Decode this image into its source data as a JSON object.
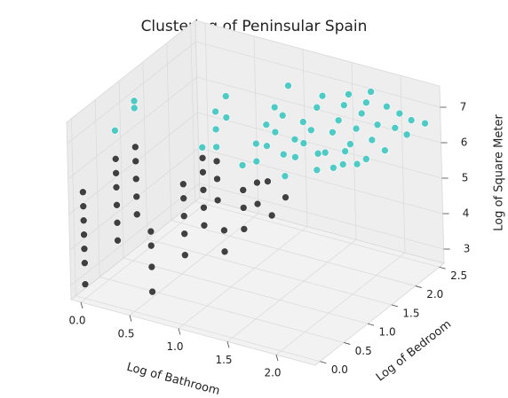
{
  "chart_data": {
    "type": "scatter3d",
    "title": "Clustering of Peninsular Spain",
    "x_label": "Log of Bathroom",
    "y_label": "Log of Bedroom",
    "z_label": "Log of Square Meter",
    "xlim": [
      -0.1,
      2.4
    ],
    "ylim": [
      -0.1,
      2.6
    ],
    "zlim": [
      2.6,
      7.6
    ],
    "xticks": [
      {
        "value": 0,
        "label": "0.0"
      },
      {
        "value": 0.5,
        "label": "0.5"
      },
      {
        "value": 1,
        "label": "1.0"
      },
      {
        "value": 1.5,
        "label": "1.5"
      },
      {
        "value": 2,
        "label": "2.0"
      }
    ],
    "yticks": [
      {
        "value": 0,
        "label": "0.0"
      },
      {
        "value": 0.5,
        "label": "0.5"
      },
      {
        "value": 1,
        "label": "1.0"
      },
      {
        "value": 1.5,
        "label": "1.5"
      },
      {
        "value": 2,
        "label": "2.0"
      },
      {
        "value": 2.5,
        "label": "2.5"
      }
    ],
    "zticks": [
      3,
      4,
      5,
      6,
      7
    ],
    "grid": true,
    "series": [
      {
        "color": "#222222",
        "x": [
          0,
          0,
          0,
          0,
          0,
          0,
          0,
          0,
          0,
          0,
          0,
          0,
          0,
          0,
          0,
          0,
          0,
          0,
          0.69,
          0.69,
          0.69,
          0.69,
          0.69,
          0.69,
          0.69,
          0.69,
          0.69,
          0.69,
          0.69,
          0.69,
          0.69,
          0.69,
          0.69,
          0.69,
          0.69,
          1.1,
          1.1,
          1.1,
          1.1,
          1.1,
          1.1,
          1.1,
          1.1,
          1.39,
          1.39
        ],
        "y": [
          0,
          0,
          0,
          0,
          0,
          0,
          0,
          0.69,
          0.69,
          0.69,
          0.69,
          0.69,
          0.69,
          1.1,
          1.1,
          1.1,
          1.1,
          1.1,
          0,
          0,
          0,
          0,
          0.69,
          0.69,
          0.69,
          0.69,
          0.69,
          1.1,
          1.1,
          1.1,
          1.1,
          1.1,
          1.39,
          1.39,
          1.39,
          0.69,
          0.69,
          1.1,
          1.1,
          1.1,
          1.39,
          1.39,
          1.61,
          1.1,
          1.39
        ],
        "z": [
          3.0,
          3.6,
          4.0,
          4.4,
          4.8,
          5.2,
          5.6,
          3.5,
          4.0,
          4.5,
          5.0,
          5.4,
          5.8,
          3.8,
          4.3,
          4.8,
          5.3,
          5.7,
          3.3,
          4.0,
          4.6,
          5.0,
          3.6,
          4.2,
          4.7,
          5.2,
          5.6,
          4.0,
          4.5,
          5.0,
          5.5,
          5.9,
          4.4,
          5.0,
          5.5,
          4.0,
          4.6,
          4.2,
          4.8,
          5.3,
          4.6,
          5.2,
          5.0,
          4.8,
          5.0
        ]
      },
      {
        "color": "#33c3bd",
        "x": [
          0,
          0,
          0,
          0.69,
          0.69,
          0.69,
          0.69,
          0.69,
          1.1,
          1.1,
          1.1,
          1.1,
          1.1,
          1.1,
          1.1,
          1.1,
          1.1,
          1.39,
          1.39,
          1.39,
          1.39,
          1.39,
          1.39,
          1.39,
          1.39,
          1.61,
          1.61,
          1.61,
          1.61,
          1.61,
          1.61,
          1.79,
          1.79,
          1.79,
          1.79,
          1.79,
          1.79,
          1.95,
          1.95,
          1.95,
          1.95,
          2.08,
          2.08,
          2.08,
          2.2,
          2.2,
          2.3,
          1.1,
          1.39,
          1.61,
          0.69,
          1.61,
          1.79
        ],
        "y": [
          0.69,
          1.1,
          1.1,
          1.1,
          1.39,
          1.39,
          1.61,
          1.61,
          1.1,
          1.39,
          1.39,
          1.61,
          1.61,
          1.79,
          1.79,
          1.95,
          2.08,
          1.39,
          1.61,
          1.61,
          1.79,
          1.79,
          1.95,
          2.08,
          2.2,
          1.61,
          1.79,
          1.95,
          2.08,
          2.2,
          2.3,
          1.79,
          1.95,
          2.08,
          2.2,
          2.3,
          2.4,
          1.95,
          2.08,
          2.2,
          2.4,
          2.08,
          2.3,
          2.4,
          2.3,
          2.4,
          2.48,
          1.95,
          2.08,
          2.2,
          1.39,
          1.95,
          2.08
        ],
        "z": [
          6.6,
          6.8,
          7.0,
          6.2,
          6.4,
          6.9,
          6.5,
          7.1,
          6.0,
          5.8,
          6.3,
          6.0,
          6.6,
          6.2,
          6.9,
          6.5,
          7.2,
          5.6,
          5.9,
          6.4,
          6.1,
          6.7,
          6.3,
          6.8,
          7.0,
          5.7,
          6.0,
          6.4,
          6.6,
          6.9,
          7.1,
          5.8,
          6.2,
          6.5,
          6.8,
          7.0,
          7.2,
          5.9,
          6.3,
          6.6,
          6.9,
          6.1,
          6.5,
          6.8,
          6.4,
          6.7,
          6.6,
          5.4,
          5.5,
          5.6,
          5.9,
          5.4,
          5.5
        ]
      }
    ]
  }
}
